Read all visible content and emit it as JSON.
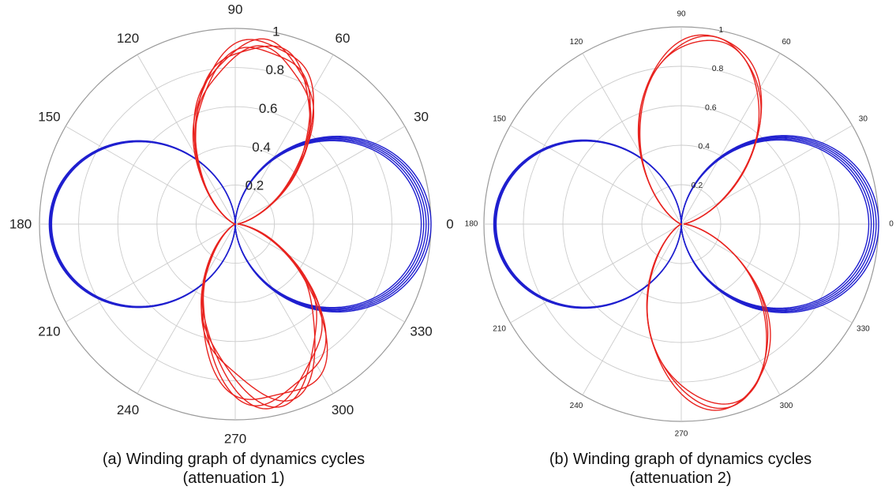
{
  "figure": {
    "captions": [
      {
        "line1": "(a) Winding graph of dynamics cycles",
        "line2": "(attenuation 1)"
      },
      {
        "line1": "(b) Winding graph of dynamics cycles",
        "line2": "(attenuation 2)"
      }
    ]
  },
  "colors": {
    "grid": "#cccccc",
    "red_series": "#e8231f",
    "blue_series": "#1f1fcf"
  },
  "chart_data": [
    {
      "type": "polar-line",
      "title": "(a) Winding graph of dynamics cycles (attenuation 1)",
      "theta_ticks_deg": [
        0,
        30,
        60,
        90,
        120,
        150,
        180,
        210,
        240,
        270,
        300,
        330
      ],
      "theta_tick_labels": [
        "0",
        "30",
        "60",
        "90",
        "120",
        "150",
        "180",
        "210",
        "240",
        "270",
        "300",
        "330"
      ],
      "r_ticks": [
        0.2,
        0.4,
        0.6,
        0.8,
        1
      ],
      "r_tick_labels": [
        "0.2",
        "0.4",
        "0.6",
        "0.8",
        "1"
      ],
      "rlim": [
        0,
        1
      ],
      "grid": true,
      "series": [
        {
          "color": "#1f1fcf",
          "cycles": 5,
          "description_points": [
            {
              "theta_deg": 0,
              "r_range": [
                0.95,
                1.0
              ]
            },
            {
              "theta_deg": 180,
              "r": 0.95
            }
          ]
        },
        {
          "color": "#e8231f",
          "cycles": 5,
          "description_points": [
            {
              "theta_deg": 80,
              "r": 0.95
            },
            {
              "theta_deg": 285,
              "r": 0.93
            }
          ]
        }
      ]
    },
    {
      "type": "polar-line",
      "title": "(b) Winding graph of dynamics cycles (attenuation 2)",
      "theta_ticks_deg": [
        0,
        30,
        60,
        90,
        120,
        150,
        180,
        210,
        240,
        270,
        300,
        330
      ],
      "theta_tick_labels": [
        "0",
        "30",
        "60",
        "90",
        "120",
        "150",
        "180",
        "210",
        "240",
        "270",
        "300",
        "330"
      ],
      "r_ticks": [
        0.2,
        0.4,
        0.6,
        0.8,
        1
      ],
      "r_tick_labels": [
        "0.2",
        "0.4",
        "0.6",
        "0.8",
        "1"
      ],
      "rlim": [
        0,
        1
      ],
      "grid": true,
      "series": [
        {
          "color": "#1f1fcf",
          "cycles": 5,
          "description_points": [
            {
              "theta_deg": 0,
              "r_range": [
                0.93,
                0.98
              ]
            },
            {
              "theta_deg": 180,
              "r": 0.95
            }
          ]
        },
        {
          "color": "#e8231f",
          "cycles": 3,
          "description_points": [
            {
              "theta_deg": 80,
              "r": 0.97
            },
            {
              "theta_deg": 285,
              "r": 0.95
            }
          ]
        }
      ]
    }
  ]
}
